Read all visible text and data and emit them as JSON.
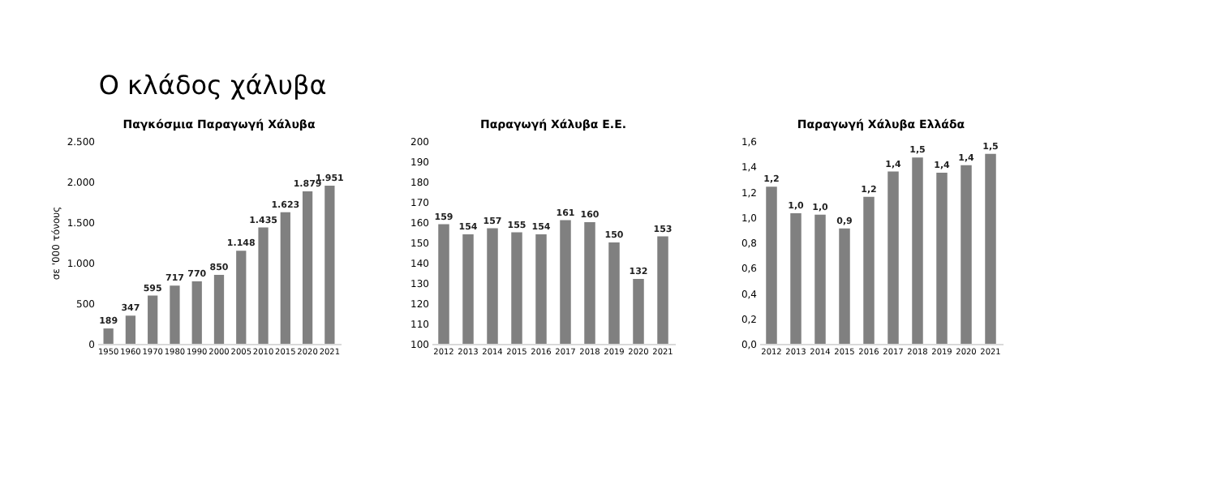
{
  "chart_data": [
    {
      "type": "other",
      "title": "Ο κλάδος χάλυβα"
    },
    {
      "type": "bar",
      "title": "Παγκόσμια Παραγωγή Χάλυβα",
      "ylabel": "σε '000 τόνους",
      "categories": [
        "1950",
        "1960",
        "1970",
        "1980",
        "1990",
        "2000",
        "2005",
        "2010",
        "2015",
        "2020",
        "2021"
      ],
      "values": [
        189,
        347,
        595,
        717,
        770,
        850,
        1148,
        1435,
        1623,
        1879,
        1951
      ],
      "value_labels": [
        "189",
        "347",
        "595",
        "717",
        "770",
        "850",
        "1.148",
        "1.435",
        "1.623",
        "1.879",
        "1.951"
      ],
      "color": "#808080",
      "ylim": [
        0,
        2500
      ],
      "yticks": [
        0,
        500,
        {
          "value": 1000,
          "label": "1.000"
        },
        {
          "value": 1500,
          "label": "1.500"
        },
        {
          "value": 2000,
          "label": "2.000"
        },
        {
          "value": 2500,
          "label": "2.500"
        }
      ],
      "grid": false
    },
    {
      "type": "bar",
      "title": "Παραγωγή Χάλυβα Ε.Ε.",
      "categories": [
        "2012",
        "2013",
        "2014",
        "2015",
        "2016",
        "2017",
        "2018",
        "2019",
        "2020",
        "2021"
      ],
      "values": [
        159,
        154,
        157,
        155,
        154,
        161,
        160,
        150,
        132,
        153
      ],
      "data_labels": true,
      "color": "#808080",
      "ylim": [
        100,
        200
      ],
      "yticks": [
        100,
        110,
        120,
        130,
        140,
        150,
        160,
        170,
        180,
        190,
        200
      ],
      "grid": false
    },
    {
      "type": "bar",
      "title": "Παραγωγή Χάλυβα Ελλάδα",
      "categories": [
        "2012",
        "2013",
        "2014",
        "2015",
        "2016",
        "2017",
        "2018",
        "2019",
        "2020",
        "2021"
      ],
      "values": [
        1.24,
        1.03,
        1.02,
        0.91,
        1.16,
        1.36,
        1.47,
        1.35,
        1.41,
        1.5
      ],
      "value_labels": [
        "1,2",
        "1,0",
        "1,0",
        "0,9",
        "1,2",
        "1,4",
        "1,5",
        "1,4",
        "1,4",
        "1,5"
      ],
      "color": "#808080",
      "ylim": [
        0,
        1.6
      ],
      "yticks": [
        {
          "value": 0,
          "label": "0,0"
        },
        {
          "value": 0.2,
          "label": "0,2"
        },
        {
          "value": 0.4,
          "label": "0,4"
        },
        {
          "value": 0.6,
          "label": "0,6"
        },
        {
          "value": 0.8,
          "label": "0,8"
        },
        {
          "value": 1.0,
          "label": "1,0"
        },
        {
          "value": 1.2,
          "label": "1,2"
        },
        {
          "value": 1.4,
          "label": "1,4"
        },
        {
          "value": 1.6,
          "label": "1,6"
        }
      ],
      "grid": false
    }
  ]
}
